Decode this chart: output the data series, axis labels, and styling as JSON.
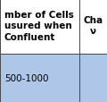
{
  "col1_header": "mber of Cells\nusured when\nConfluent",
  "col2_header": "Cha\nν",
  "col1_value": "500-1000",
  "col2_value": "",
  "header_bg": "#ffffff",
  "cell_bg": "#aec6e8",
  "border_color": "#4a4a4a",
  "header_fontsize": 7.5,
  "value_fontsize": 7.5,
  "fig_width": 1.2,
  "fig_height": 1.15,
  "dpi": 100,
  "col_split": 0.745
}
